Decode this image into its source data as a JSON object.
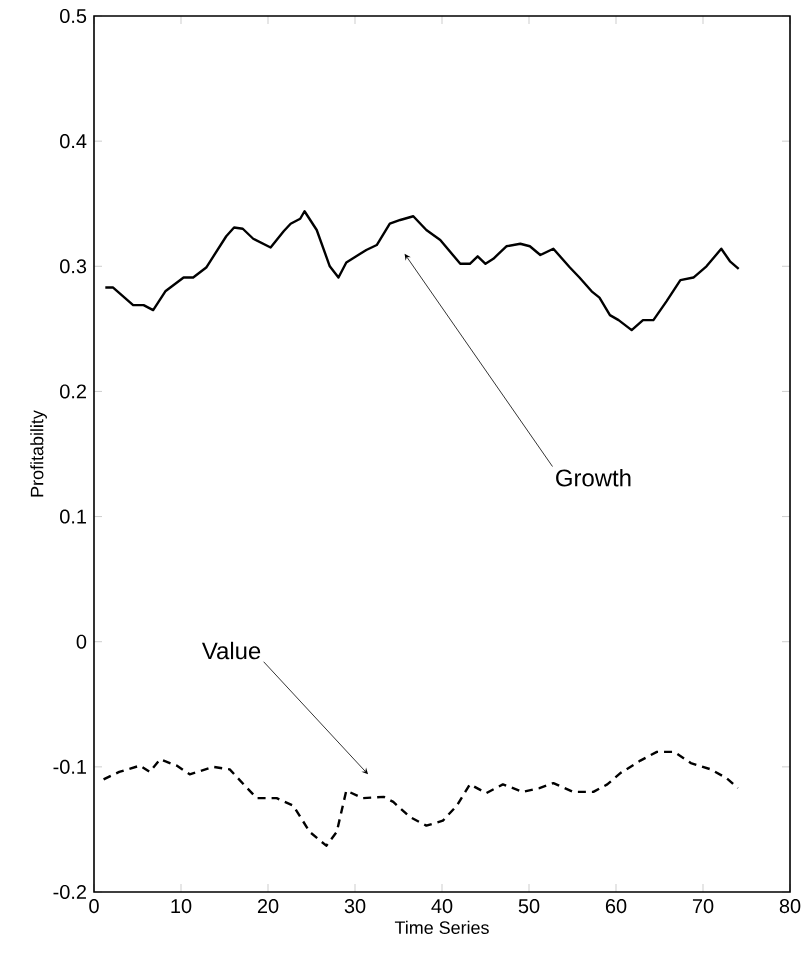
{
  "chart_data": {
    "type": "line",
    "xlabel": "Time Series",
    "ylabel": "Profitability",
    "xlim": [
      0,
      80
    ],
    "ylim": [
      -0.2,
      0.5
    ],
    "xticks": [
      0,
      10,
      20,
      30,
      40,
      50,
      60,
      70,
      80
    ],
    "yticks": [
      -0.2,
      -0.1,
      0,
      0.1,
      0.2,
      0.3,
      0.4,
      0.5
    ],
    "grid": false,
    "annotations": [
      {
        "text": "Growth",
        "x": 35.7,
        "y": 0.31
      },
      {
        "text": "Value",
        "x": 31.5,
        "y": -0.106
      }
    ],
    "series": [
      {
        "color": "#000000",
        "line_style": "solid",
        "x": [
          1.3,
          2.2,
          4.5,
          5.7,
          6.8,
          8.2,
          10.3,
          11.4,
          12.9,
          15.2,
          16.1,
          17.1,
          18.3,
          20.3,
          21.8,
          22.6,
          23.7,
          24.2,
          25.6,
          27.1,
          28.1,
          29.0,
          30.6,
          31.3,
          32.5,
          34.0,
          35.2,
          36.7,
          38.2,
          39.8,
          42.1,
          43.2,
          44.1,
          45.0,
          45.9,
          47.4,
          49.0,
          50.1,
          51.3,
          52.8,
          54.7,
          55.8,
          57.2,
          58.1,
          59.3,
          60.3,
          61.8,
          63.1,
          64.3,
          65.8,
          67.4,
          68.9,
          70.4,
          72.1,
          73.1,
          74.1
        ],
        "values": [
          0.283,
          0.283,
          0.269,
          0.269,
          0.265,
          0.28,
          0.291,
          0.291,
          0.299,
          0.324,
          0.331,
          0.33,
          0.322,
          0.315,
          0.328,
          0.334,
          0.338,
          0.344,
          0.329,
          0.3,
          0.291,
          0.303,
          0.31,
          0.313,
          0.317,
          0.334,
          0.337,
          0.34,
          0.329,
          0.321,
          0.302,
          0.302,
          0.308,
          0.302,
          0.306,
          0.316,
          0.318,
          0.316,
          0.309,
          0.314,
          0.299,
          0.291,
          0.28,
          0.275,
          0.261,
          0.257,
          0.249,
          0.257,
          0.257,
          0.272,
          0.289,
          0.291,
          0.3,
          0.314,
          0.304,
          0.298
        ]
      },
      {
        "color": "#000000",
        "line_style": "dashed",
        "x": [
          1.1,
          2.9,
          5.3,
          6.4,
          7.6,
          9.5,
          11.0,
          13.7,
          15.6,
          17.2,
          18.7,
          21.0,
          22.9,
          24.8,
          26.7,
          27.9,
          29.0,
          30.9,
          33.3,
          34.4,
          36.3,
          38.2,
          40.1,
          41.7,
          43.2,
          45.1,
          47.0,
          49.3,
          51.2,
          52.8,
          55.1,
          57.4,
          59.0,
          60.5,
          62.8,
          64.7,
          66.7,
          68.6,
          70.9,
          72.7,
          74.0
        ],
        "values": [
          -0.11,
          -0.104,
          -0.099,
          -0.104,
          -0.094,
          -0.099,
          -0.106,
          -0.1,
          -0.102,
          -0.114,
          -0.125,
          -0.125,
          -0.131,
          -0.152,
          -0.163,
          -0.152,
          -0.119,
          -0.125,
          -0.124,
          -0.128,
          -0.14,
          -0.147,
          -0.143,
          -0.131,
          -0.114,
          -0.121,
          -0.114,
          -0.12,
          -0.117,
          -0.113,
          -0.12,
          -0.12,
          -0.114,
          -0.105,
          -0.095,
          -0.088,
          -0.088,
          -0.097,
          -0.102,
          -0.109,
          -0.117
        ]
      }
    ]
  }
}
